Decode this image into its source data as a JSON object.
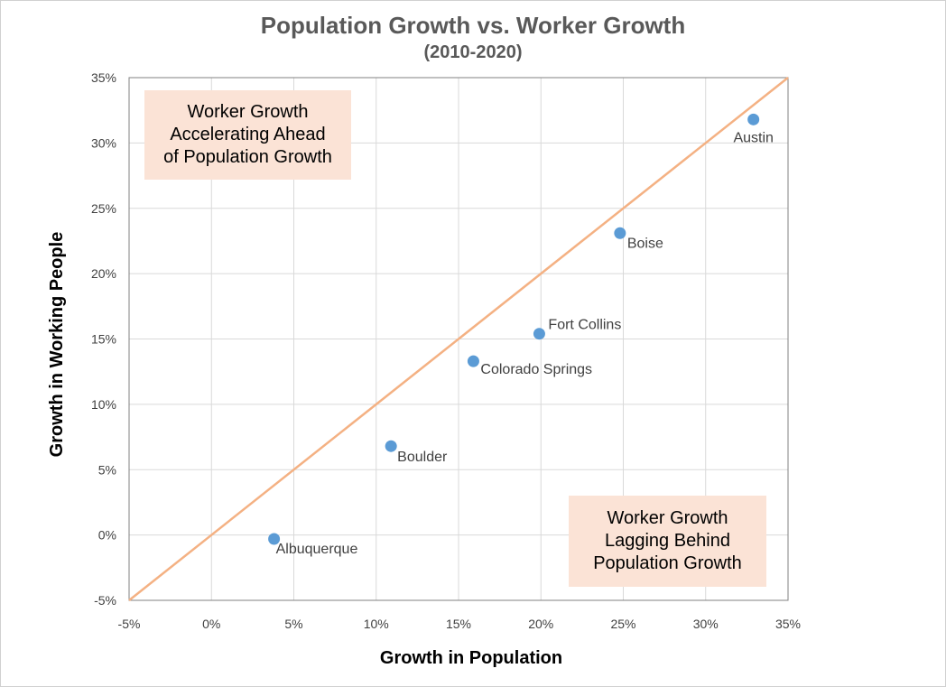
{
  "chart_data": {
    "type": "scatter",
    "title": "Population Growth vs. Worker Growth",
    "subtitle": "(2010-2020)",
    "xlabel": "Growth in Population",
    "ylabel": "Growth in Working People",
    "xlim": [
      -5,
      35
    ],
    "ylim": [
      -5,
      35
    ],
    "x_ticks": [
      -5,
      0,
      5,
      10,
      15,
      20,
      25,
      30,
      35
    ],
    "y_ticks": [
      -5,
      0,
      5,
      10,
      15,
      20,
      25,
      30,
      35
    ],
    "tick_format": "{v}%",
    "grid": true,
    "reference_line": {
      "type": "y=x",
      "color": "#f4b183"
    },
    "marker_color": "#5b9bd5",
    "points": [
      {
        "label": "Albuquerque",
        "x": 3.8,
        "y": -0.3
      },
      {
        "label": "Boulder",
        "x": 10.9,
        "y": 6.8
      },
      {
        "label": "Colorado Springs",
        "x": 15.9,
        "y": 13.3
      },
      {
        "label": "Fort Collins",
        "x": 19.9,
        "y": 15.4
      },
      {
        "label": "Boise",
        "x": 24.8,
        "y": 23.1
      },
      {
        "label": "Austin",
        "x": 32.9,
        "y": 31.8
      }
    ],
    "annotations": [
      {
        "position": "top-left",
        "lines": [
          "Worker Growth",
          "Accelerating Ahead",
          "of Population Growth"
        ]
      },
      {
        "position": "bottom-right",
        "lines": [
          "Worker Growth",
          "Lagging Behind",
          "Population Growth"
        ]
      }
    ]
  }
}
